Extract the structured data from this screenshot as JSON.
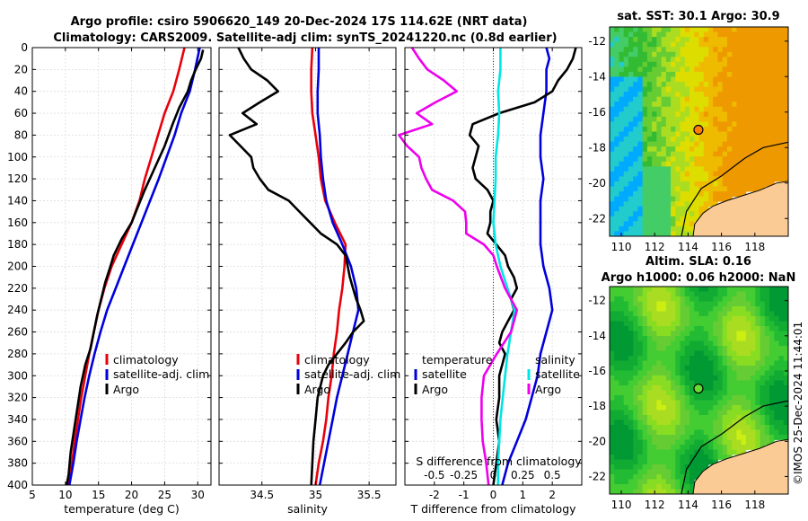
{
  "titles": {
    "line1": "Argo profile: csiro 5906620_149 20-Dec-2024 17S 114.62E (NRT data)",
    "line2": "Climatology: CARS2009. Satellite-adj clim: synTS_20241220.nc (0.8d earlier)"
  },
  "map_titles": {
    "sst": "sat. SST: 30.1 Argo: 30.9",
    "sla1": "Altim. SLA: 0.16",
    "sla2": "Argo h1000: 0.06 h2000: NaN"
  },
  "watermark": "©IMOS 25-Dec-2024 11:44:01",
  "colors": {
    "climatology": "#e8000b",
    "satellite": "#0000dd",
    "argo": "#000000",
    "cyan": "#00e5e5",
    "magenta": "#ee00ee",
    "land": "#fbcb96"
  },
  "legend": {
    "panel1": [
      "climatology",
      "satellite-adj. clim",
      "Argo"
    ],
    "panel2": [
      "climatology",
      "satellite-adj. clim",
      "Argo"
    ],
    "panel3_left": [
      "temperature",
      "satellite",
      "Argo"
    ],
    "panel3_right": [
      "salinity",
      "satellite",
      "Argo"
    ]
  },
  "chart_data": [
    {
      "type": "line",
      "name": "temperature-profile",
      "title": "",
      "xlabel": "temperature (deg C)",
      "ylabel": "",
      "xlim": [
        5,
        32
      ],
      "ylim": [
        400,
        0
      ],
      "xticks": [
        5,
        10,
        15,
        20,
        25,
        30
      ],
      "yticks": [
        0,
        20,
        40,
        60,
        80,
        100,
        120,
        140,
        160,
        180,
        200,
        220,
        240,
        260,
        280,
        300,
        320,
        340,
        360,
        380,
        400
      ],
      "series": [
        {
          "name": "climatology",
          "color": "#e8000b",
          "depth": [
            0,
            20,
            40,
            60,
            80,
            100,
            120,
            140,
            160,
            180,
            200,
            220,
            240,
            260,
            280,
            300,
            320,
            340,
            360,
            380,
            400
          ],
          "values": [
            28.0,
            27.2,
            26.3,
            25.0,
            24.0,
            23.0,
            22.0,
            21.2,
            20.0,
            18.5,
            17.0,
            15.9,
            15.0,
            14.3,
            13.6,
            13.0,
            12.4,
            11.9,
            11.4,
            11.0,
            10.5
          ]
        },
        {
          "name": "satellite-adj. clim",
          "color": "#0000dd",
          "depth": [
            0,
            20,
            40,
            60,
            80,
            100,
            120,
            140,
            160,
            180,
            200,
            220,
            240,
            260,
            280,
            300,
            320,
            340,
            360,
            380,
            400
          ],
          "values": [
            30.3,
            29.6,
            28.8,
            27.5,
            26.5,
            25.3,
            24.1,
            22.8,
            21.5,
            20.2,
            18.9,
            17.6,
            16.3,
            15.3,
            14.4,
            13.6,
            12.9,
            12.3,
            11.7,
            11.2,
            10.6
          ]
        },
        {
          "name": "Argo",
          "color": "#000000",
          "depth": [
            2,
            10,
            20,
            30,
            40,
            55,
            70,
            90,
            110,
            130,
            145,
            160,
            175,
            190,
            200,
            215,
            230,
            245,
            260,
            275,
            290,
            310,
            330,
            350,
            370,
            390,
            400
          ],
          "values": [
            30.8,
            30.5,
            29.7,
            29.0,
            28.5,
            27.2,
            26.2,
            25.0,
            23.5,
            22.0,
            21.0,
            20.0,
            18.5,
            17.3,
            16.8,
            16.0,
            15.4,
            14.8,
            14.3,
            13.8,
            13.0,
            12.3,
            11.8,
            11.3,
            10.8,
            10.5,
            10.2
          ]
        }
      ]
    },
    {
      "type": "line",
      "name": "salinity-profile",
      "title": "",
      "xlabel": "salinity",
      "ylabel": "",
      "xlim": [
        34.1,
        35.75
      ],
      "ylim": [
        400,
        0
      ],
      "xticks": [
        34.5,
        35,
        35.5
      ],
      "series": [
        {
          "name": "climatology",
          "color": "#e8000b",
          "depth": [
            0,
            20,
            40,
            60,
            80,
            100,
            120,
            140,
            160,
            180,
            200,
            220,
            240,
            260,
            280,
            300,
            320,
            340,
            360,
            380,
            400
          ],
          "values": [
            34.97,
            34.96,
            34.96,
            34.97,
            35.0,
            35.03,
            35.05,
            35.09,
            35.18,
            35.28,
            35.27,
            35.25,
            35.22,
            35.2,
            35.17,
            35.15,
            35.12,
            35.1,
            35.07,
            35.03,
            35.0
          ]
        },
        {
          "name": "satellite-adj. clim",
          "color": "#0000dd",
          "depth": [
            0,
            20,
            40,
            60,
            80,
            100,
            120,
            140,
            160,
            180,
            200,
            220,
            240,
            260,
            280,
            300,
            320,
            340,
            360,
            380,
            400
          ],
          "values": [
            35.03,
            35.03,
            35.02,
            35.02,
            35.04,
            35.05,
            35.07,
            35.1,
            35.16,
            35.25,
            35.33,
            35.38,
            35.4,
            35.35,
            35.3,
            35.25,
            35.2,
            35.16,
            35.12,
            35.08,
            35.04
          ]
        },
        {
          "name": "Argo",
          "color": "#000000",
          "depth": [
            0,
            10,
            20,
            30,
            40,
            50,
            60,
            70,
            80,
            90,
            100,
            110,
            120,
            130,
            140,
            150,
            160,
            170,
            180,
            190,
            200,
            210,
            220,
            230,
            240,
            250,
            260,
            270,
            280,
            290,
            300,
            320,
            340,
            360,
            380,
            400
          ],
          "values": [
            34.28,
            34.33,
            34.4,
            34.55,
            34.65,
            34.48,
            34.32,
            34.45,
            34.2,
            34.3,
            34.4,
            34.42,
            34.48,
            34.56,
            34.75,
            34.85,
            34.95,
            35.05,
            35.2,
            35.28,
            35.3,
            35.32,
            35.35,
            35.38,
            35.42,
            35.45,
            35.35,
            35.28,
            35.2,
            35.12,
            35.07,
            35.02,
            35.0,
            34.98,
            34.97,
            34.96
          ]
        }
      ]
    },
    {
      "type": "line",
      "name": "difference-profile",
      "title": "",
      "xlabel": "T difference from climatology",
      "secondary_xlabel": "S difference from climatology",
      "xlim": [
        -3,
        3
      ],
      "ylim": [
        400,
        0
      ],
      "xticks": [
        -2,
        -1,
        0,
        1,
        2
      ],
      "secondary_xticks": [
        -0.5,
        -0.25,
        0,
        0.25,
        0.5
      ],
      "series": [
        {
          "name": "temperature satellite",
          "color": "#0000dd",
          "depth": [
            0,
            10,
            20,
            40,
            60,
            80,
            100,
            120,
            140,
            160,
            180,
            200,
            220,
            240,
            260,
            280,
            300,
            320,
            340,
            360,
            380,
            400
          ],
          "values": [
            1.8,
            1.9,
            1.8,
            1.8,
            1.7,
            1.6,
            1.6,
            1.7,
            1.6,
            1.6,
            1.6,
            1.7,
            1.9,
            2.0,
            1.8,
            1.6,
            1.5,
            1.3,
            1.1,
            0.8,
            0.5,
            0.3
          ]
        },
        {
          "name": "temperature Argo",
          "color": "#000000",
          "depth": [
            0,
            10,
            20,
            30,
            40,
            50,
            60,
            70,
            80,
            90,
            100,
            110,
            120,
            130,
            140,
            150,
            160,
            170,
            180,
            190,
            200,
            210,
            220,
            230,
            240,
            250,
            260,
            270,
            280,
            290,
            300,
            320,
            340,
            360,
            380,
            400
          ],
          "values": [
            2.8,
            2.7,
            2.5,
            2.2,
            2.0,
            1.4,
            0.2,
            -0.7,
            -0.8,
            -0.5,
            -0.6,
            -0.7,
            -0.6,
            -0.2,
            0.0,
            -0.1,
            -0.1,
            -0.2,
            0.1,
            0.4,
            0.5,
            0.7,
            0.8,
            0.6,
            0.7,
            0.5,
            0.3,
            0.2,
            0.4,
            0.3,
            0.2,
            0.2,
            0.1,
            0.2,
            0.1,
            0.0
          ]
        },
        {
          "name": "salinity satellite",
          "color": "#00e5e5",
          "depth": [
            0,
            20,
            40,
            60,
            80,
            100,
            120,
            140,
            160,
            180,
            200,
            220,
            240,
            260,
            280,
            300,
            320,
            340,
            360,
            380,
            400
          ],
          "values": [
            0.06,
            0.06,
            0.04,
            0.05,
            0.04,
            0.02,
            0.02,
            0.01,
            0.0,
            0.02,
            0.06,
            0.12,
            0.18,
            0.15,
            0.12,
            0.1,
            0.08,
            0.06,
            0.05,
            0.04,
            0.04
          ]
        },
        {
          "name": "salinity Argo",
          "color": "#ee00ee",
          "depth": [
            0,
            10,
            20,
            30,
            40,
            50,
            60,
            70,
            80,
            90,
            100,
            110,
            120,
            130,
            140,
            150,
            160,
            170,
            180,
            190,
            200,
            220,
            240,
            260,
            280,
            300,
            320,
            340,
            360,
            380,
            400
          ],
          "values": [
            -0.69,
            -0.63,
            -0.56,
            -0.42,
            -0.31,
            -0.49,
            -0.65,
            -0.52,
            -0.8,
            -0.73,
            -0.63,
            -0.61,
            -0.57,
            -0.52,
            -0.34,
            -0.24,
            -0.23,
            -0.23,
            -0.08,
            0.0,
            0.03,
            0.1,
            0.2,
            0.15,
            0.03,
            -0.08,
            -0.1,
            -0.1,
            -0.09,
            -0.06,
            -0.04
          ]
        }
      ]
    },
    {
      "type": "heatmap",
      "name": "sst-map",
      "title": "sat. SST: 30.1 Argo: 30.9",
      "xlim": [
        109.3,
        120
      ],
      "ylim": [
        -23,
        -11.2
      ],
      "xticks": [
        110,
        112,
        114,
        116,
        118
      ],
      "yticks": [
        -12,
        -14,
        -16,
        -18,
        -20,
        -22
      ],
      "marker": {
        "lon": 114.62,
        "lat": -17.0,
        "color": "#ff7f00"
      }
    },
    {
      "type": "heatmap",
      "name": "sla-map",
      "title": "Altim. SLA: 0.16",
      "xlim": [
        109.3,
        120
      ],
      "ylim": [
        -23,
        -11.2
      ],
      "xticks": [
        110,
        112,
        114,
        116,
        118
      ],
      "yticks": [
        -12,
        -14,
        -16,
        -18,
        -20,
        -22
      ],
      "marker": {
        "lon": 114.62,
        "lat": -17.0,
        "color": "#66dd33"
      }
    }
  ]
}
